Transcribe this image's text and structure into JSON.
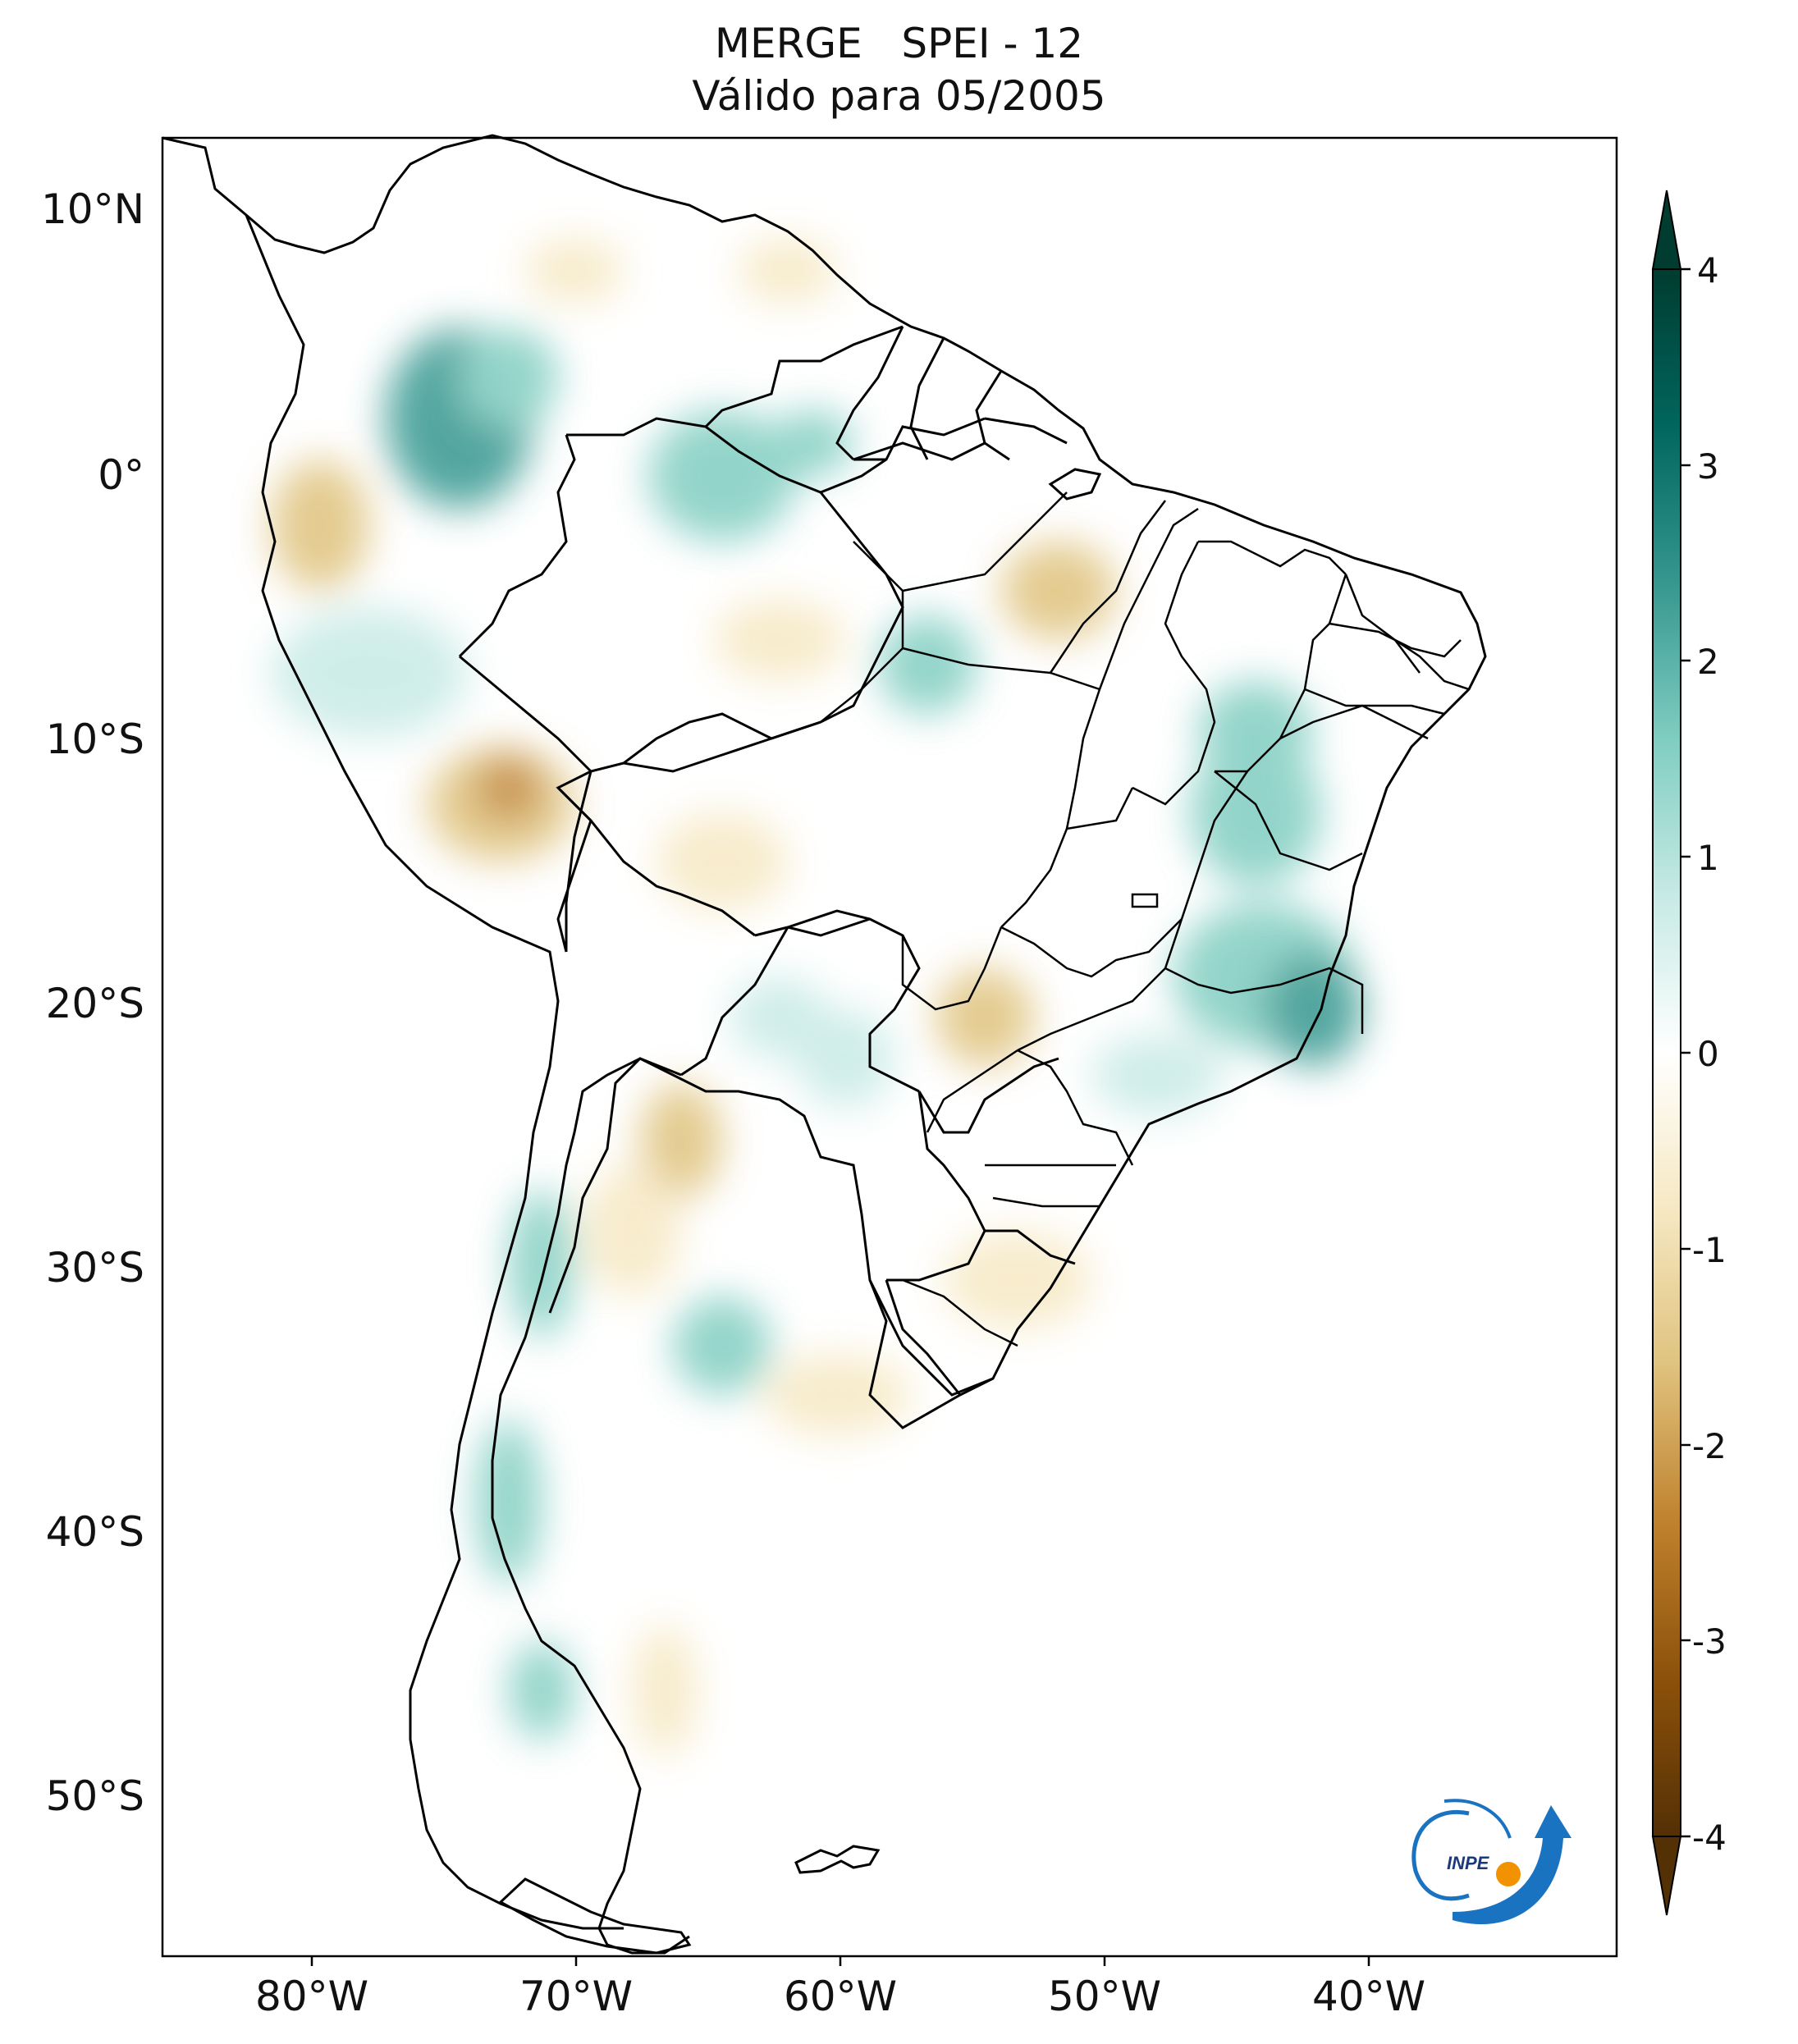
{
  "title": {
    "line1_left": "MERGE",
    "line1_right": "SPEI - 12",
    "line2": "Válido para 05/2005"
  },
  "map": {
    "region": "South America",
    "extent_lon": [
      -85,
      -30
    ],
    "extent_lat": [
      -56,
      12
    ],
    "lon_ticks": [
      {
        "value": -80,
        "label": "80°W"
      },
      {
        "value": -70,
        "label": "70°W"
      },
      {
        "value": -60,
        "label": "60°W"
      },
      {
        "value": -50,
        "label": "50°W"
      },
      {
        "value": -40,
        "label": "40°W"
      }
    ],
    "lat_ticks": [
      {
        "value": 10,
        "label": "10°N"
      },
      {
        "value": 0,
        "label": "0°"
      },
      {
        "value": -10,
        "label": "10°S"
      },
      {
        "value": -20,
        "label": "20°S"
      },
      {
        "value": -30,
        "label": "30°S"
      },
      {
        "value": -40,
        "label": "40°S"
      },
      {
        "value": -50,
        "label": "50°S"
      }
    ]
  },
  "colorbar": {
    "range": [
      -4,
      4
    ],
    "extend": "both",
    "colormap": "BrBG",
    "colors": [
      "#543005",
      "#8c510a",
      "#bf812d",
      "#dfc27d",
      "#f6e8c3",
      "#ffffff",
      "#c7eae5",
      "#80cdc1",
      "#35978f",
      "#01665e",
      "#003c30"
    ],
    "ticks": [
      {
        "value": 4,
        "label": "4"
      },
      {
        "value": 3,
        "label": "3"
      },
      {
        "value": 2,
        "label": "2"
      },
      {
        "value": 1,
        "label": "1"
      },
      {
        "value": 0,
        "label": "0"
      },
      {
        "value": -1,
        "label": "-1"
      },
      {
        "value": -2,
        "label": "-2"
      },
      {
        "value": -3,
        "label": "-3"
      },
      {
        "value": -4,
        "label": "-4"
      }
    ]
  },
  "logo": {
    "text": "INPE",
    "accent_blue": "#1a73c1",
    "accent_orange": "#f39200"
  }
}
